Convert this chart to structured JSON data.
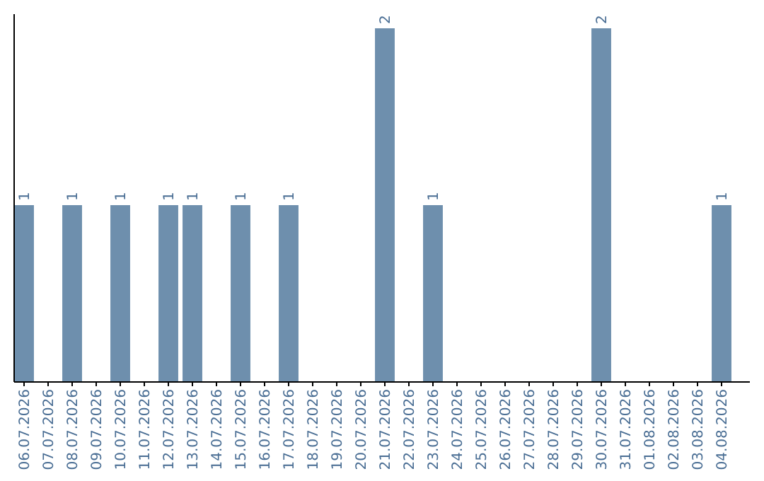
{
  "chart_data": {
    "type": "bar",
    "categories": [
      "06.07.2026",
      "07.07.2026",
      "08.07.2026",
      "09.07.2026",
      "10.07.2026",
      "11.07.2026",
      "12.07.2026",
      "13.07.2026",
      "14.07.2026",
      "15.07.2026",
      "16.07.2026",
      "17.07.2026",
      "18.07.2026",
      "19.07.2026",
      "20.07.2026",
      "21.07.2026",
      "22.07.2026",
      "23.07.2026",
      "24.07.2026",
      "25.07.2026",
      "26.07.2026",
      "27.07.2026",
      "28.07.2026",
      "29.07.2026",
      "30.07.2026",
      "31.07.2026",
      "01.08.2026",
      "02.08.2026",
      "03.08.2026",
      "04.08.2026"
    ],
    "values": [
      1,
      0,
      1,
      0,
      1,
      0,
      1,
      1,
      0,
      1,
      0,
      1,
      0,
      0,
      0,
      2,
      0,
      1,
      0,
      0,
      0,
      0,
      0,
      0,
      2,
      0,
      0,
      0,
      0,
      1
    ],
    "value_labels": [
      "1",
      null,
      "1",
      null,
      "1",
      null,
      "1",
      "1",
      null,
      "1",
      null,
      "1",
      null,
      null,
      null,
      "2",
      null,
      "1",
      null,
      null,
      null,
      null,
      null,
      null,
      "2",
      null,
      null,
      null,
      null,
      "1"
    ],
    "color": "#6e8fad"
  }
}
